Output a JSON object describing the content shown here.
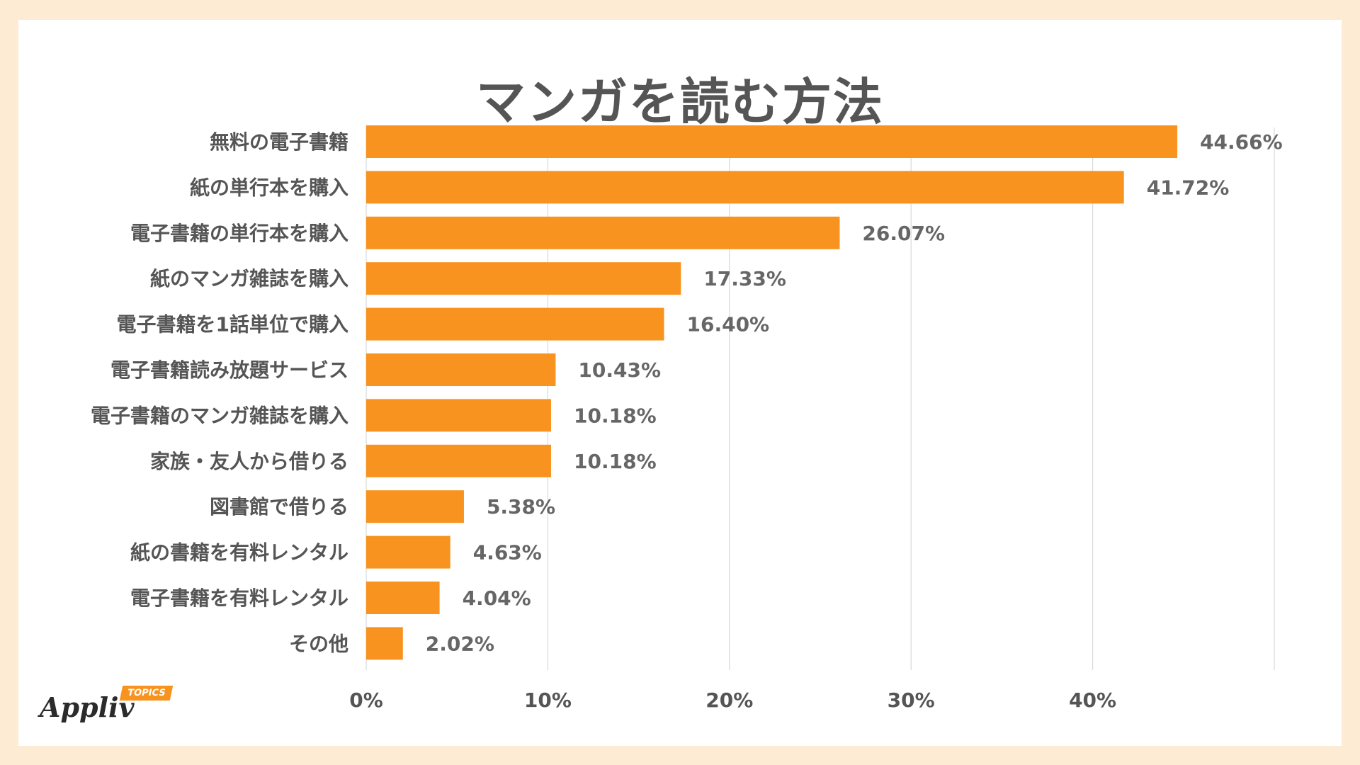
{
  "chart_data": {
    "type": "bar",
    "orientation": "horizontal",
    "title": "マンガを読む方法",
    "categories": [
      "無料の電子書籍",
      "紙の単行本を購入",
      "電子書籍の単行本を購入",
      "紙のマンガ雑誌を購入",
      "電子書籍を1話単位で購入",
      "電子書籍読み放題サービス",
      "電子書籍のマンガ雑誌を購入",
      "家族・友人から借りる",
      "図書館で借りる",
      "紙の書籍を有料レンタル",
      "電子書籍を有料レンタル",
      "その他"
    ],
    "values": [
      44.66,
      41.72,
      26.07,
      17.33,
      16.4,
      10.43,
      10.18,
      10.18,
      5.38,
      4.63,
      4.04,
      2.02
    ],
    "value_labels": [
      "44.66%",
      "41.72%",
      "26.07%",
      "17.33%",
      "16.40%",
      "10.43%",
      "10.18%",
      "10.18%",
      "5.38%",
      "4.63%",
      "4.04%",
      "2.02%"
    ],
    "xlim": [
      0,
      50
    ],
    "xticks": [
      0,
      10,
      20,
      30,
      40
    ],
    "xtick_labels": [
      "0%",
      "10%",
      "20%",
      "30%",
      "40%"
    ],
    "grid": true,
    "colors": {
      "bar": "#f7931e",
      "label": "#555555",
      "value": "#666666",
      "grid": "#d9d9d9"
    }
  },
  "logo": {
    "text": "Appliv",
    "badge": "TOPICS"
  }
}
